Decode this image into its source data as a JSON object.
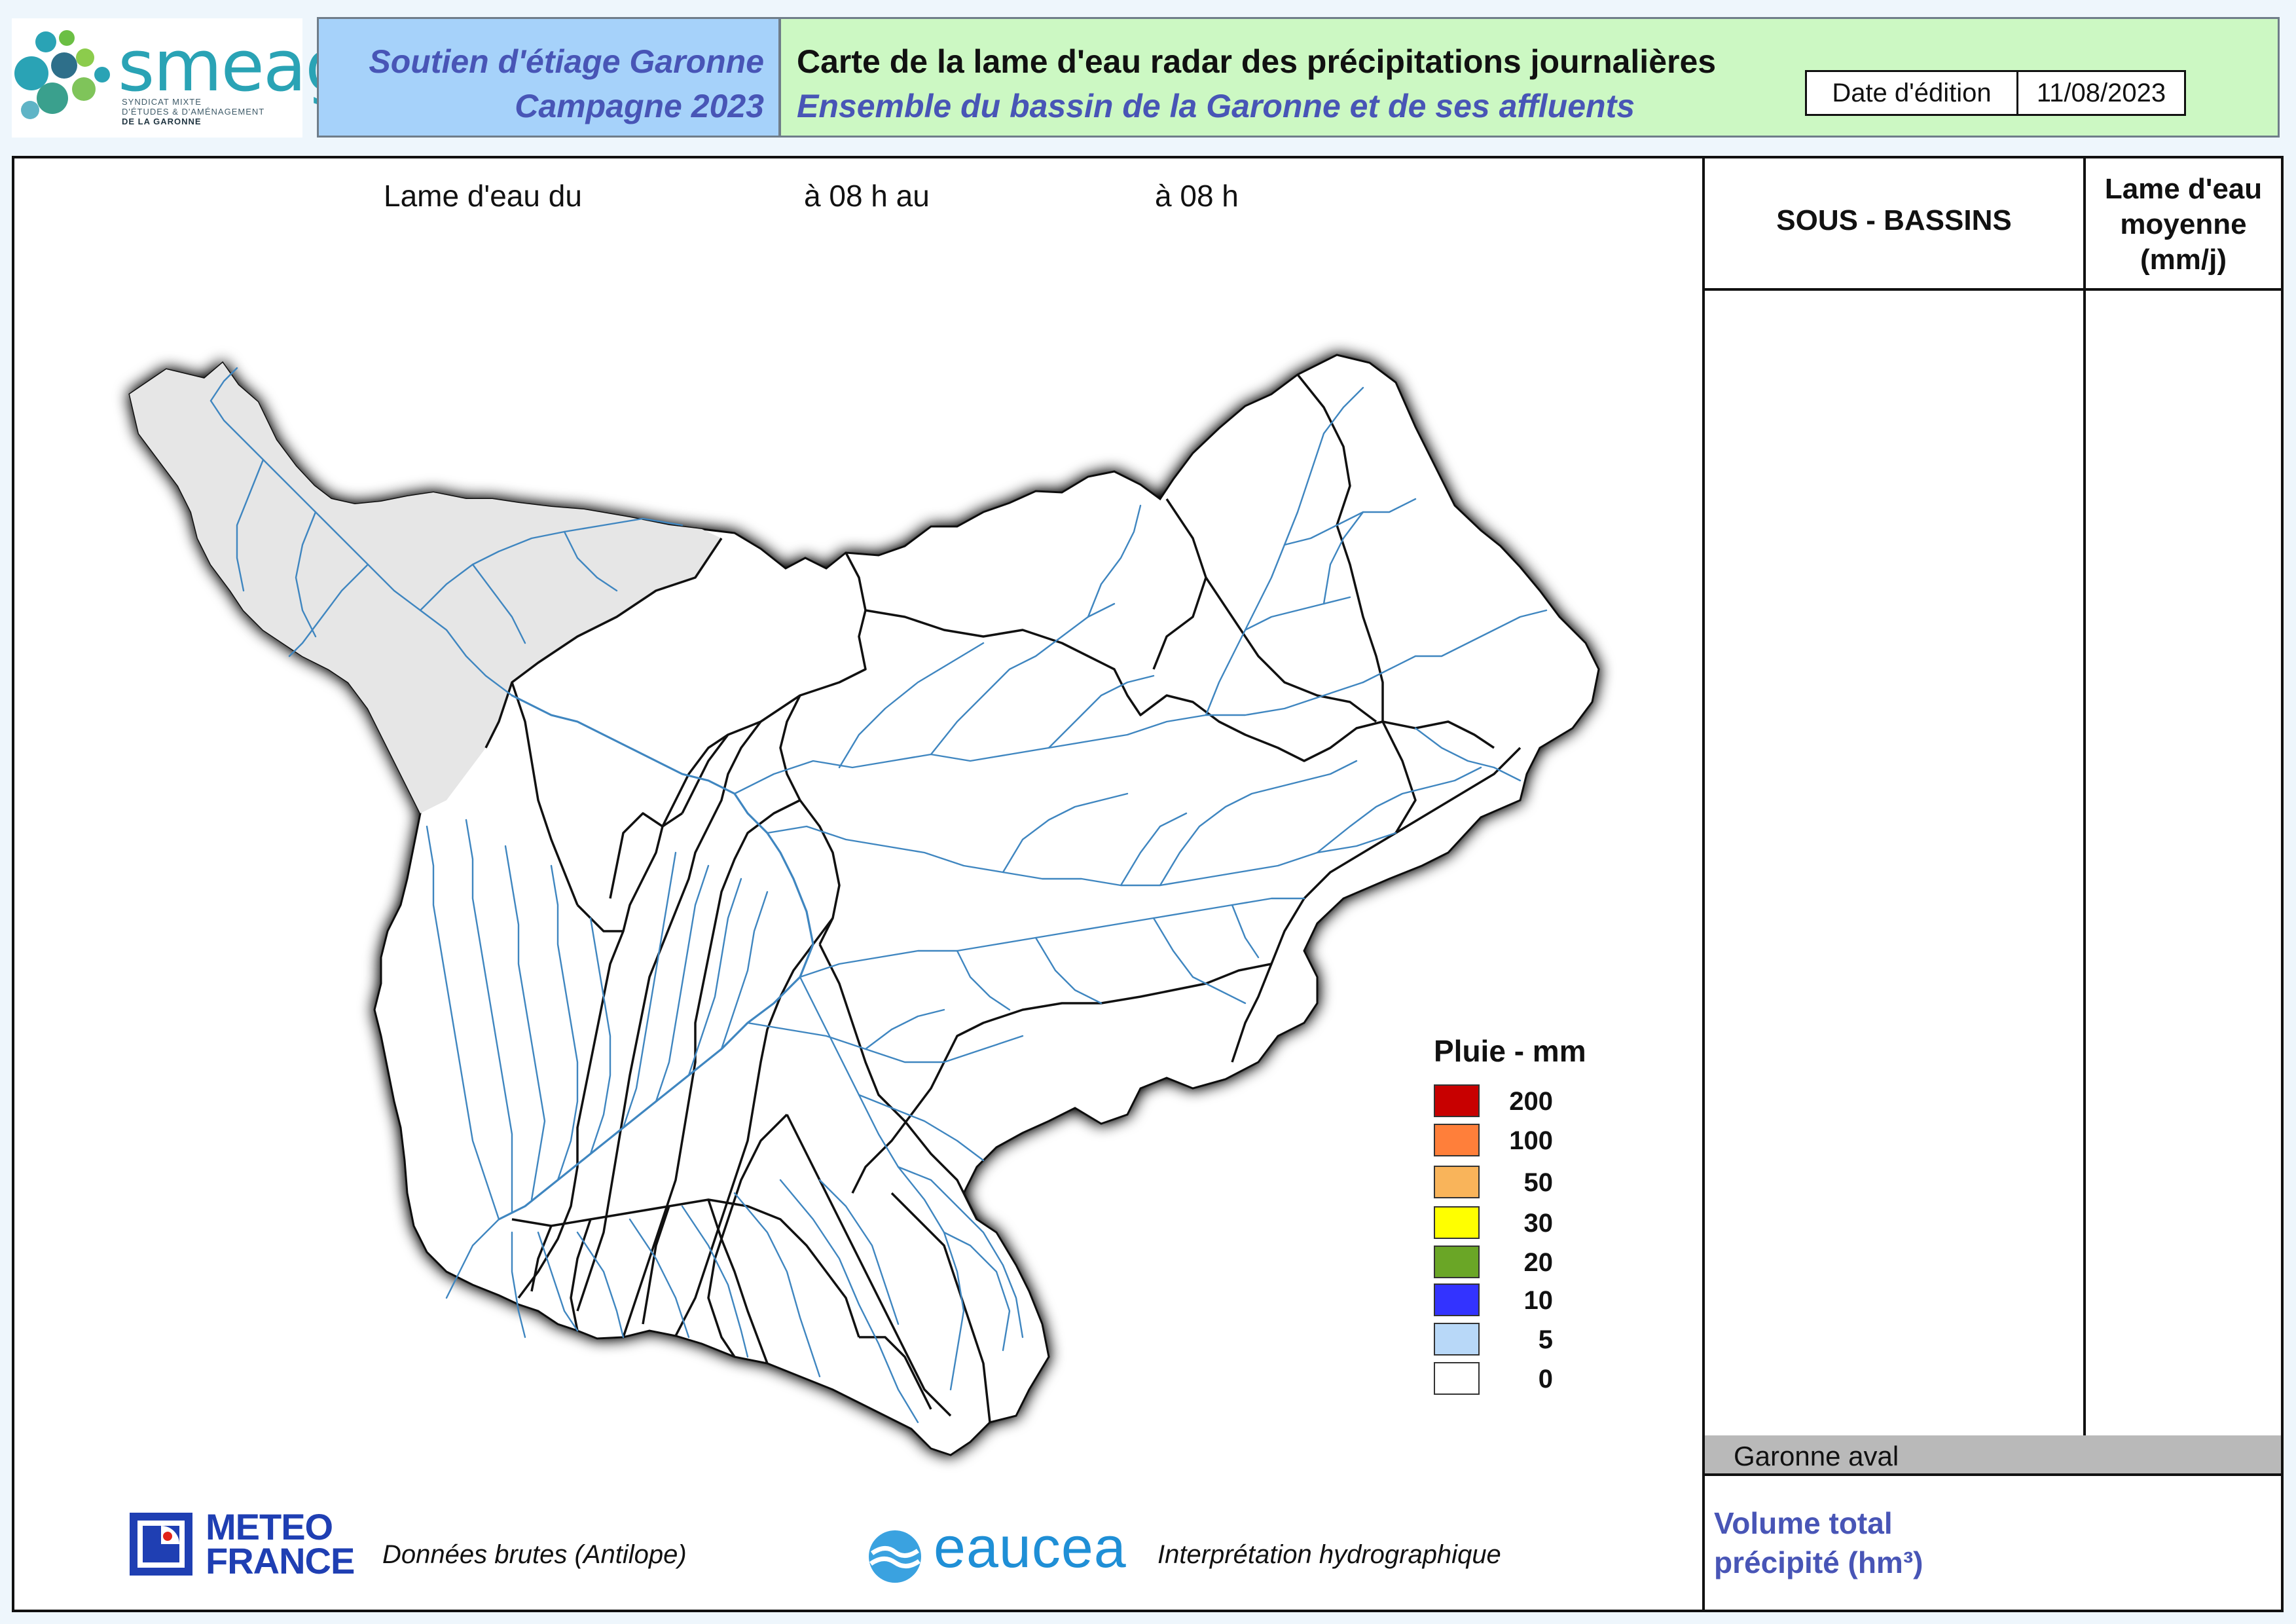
{
  "header": {
    "logo": {
      "word": "smeag",
      "subtitle_1": "Syndicat mixte",
      "subtitle_2": "d'études & d'aménagement",
      "subtitle_3": "de la Garonne"
    },
    "left_line1": "Soutien d'étiage Garonne",
    "left_line2": "Campagne 2023",
    "title": "Carte de la lame d'eau radar des précipitations journalières",
    "subtitle": "Ensemble du bassin de la Garonne et de ses affluents",
    "date_label": "Date d'édition",
    "date_value": "11/08/2023"
  },
  "period": {
    "part1": "Lame d'eau du",
    "part2": "à 08 h au",
    "part3": "à 08 h"
  },
  "map": {
    "basin_fill": "#ffffff",
    "excluded_fill": "#e6e6e6",
    "river_color": "#3f86c0",
    "boundary_color": "#111111"
  },
  "legend": {
    "title": "Pluie - mm",
    "items": [
      {
        "value": "200",
        "color": "#c80000"
      },
      {
        "value": "100",
        "color": "#ff7f3a"
      },
      {
        "value": "50",
        "color": "#f9b45a"
      },
      {
        "value": "30",
        "color": "#ffff00"
      },
      {
        "value": "20",
        "color": "#6aa626"
      },
      {
        "value": "10",
        "color": "#3333ff"
      },
      {
        "value": "5",
        "color": "#b8d8f8"
      },
      {
        "value": "0",
        "color": "#ffffff"
      }
    ]
  },
  "credits": {
    "meteo_line1": "METEO",
    "meteo_line2": "FRANCE",
    "meteo_caption": "Données brutes (Antilope)",
    "eaucea_word": "eaucea",
    "eaucea_caption": "Interprétation hydrographique"
  },
  "table": {
    "col1_header": "SOUS - BASSINS",
    "col2_header_1": "Lame d'eau",
    "col2_header_2": "moyenne",
    "col2_header_3": "(mm/j)",
    "row_label": "Garonne aval",
    "total_label_1": "Volume total",
    "total_label_2": "précipité (hm³)"
  }
}
